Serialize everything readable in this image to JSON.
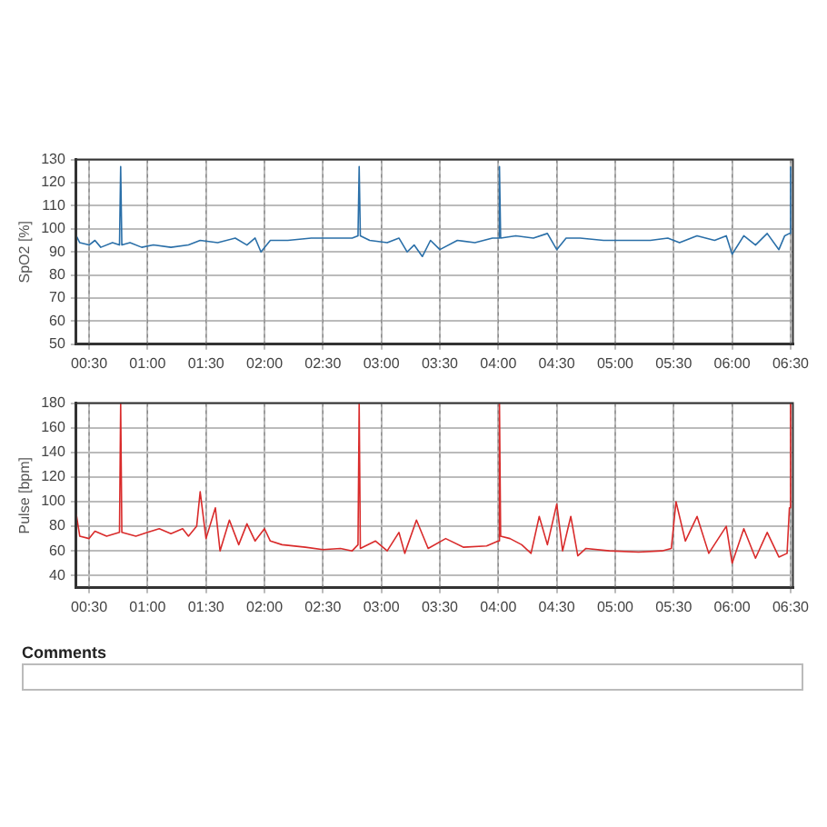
{
  "chart_data": [
    {
      "type": "line",
      "ylabel": "SpO2 [%]",
      "xlim": [
        0.39,
        6.52
      ],
      "ylim": [
        50,
        130
      ],
      "yticks": [
        50,
        60,
        70,
        80,
        90,
        100,
        110,
        120,
        130
      ],
      "xticks": [
        {
          "value": 0.5,
          "label": "00:30"
        },
        {
          "value": 1,
          "label": "01:00"
        },
        {
          "value": 1.5,
          "label": "01:30"
        },
        {
          "value": 2,
          "label": "02:00"
        },
        {
          "value": 2.5,
          "label": "02:30"
        },
        {
          "value": 3,
          "label": "03:00"
        },
        {
          "value": 3.5,
          "label": "03:30"
        },
        {
          "value": 4,
          "label": "04:00"
        },
        {
          "value": 4.5,
          "label": "04:30"
        },
        {
          "value": 5,
          "label": "05:00"
        },
        {
          "value": 5.5,
          "label": "05:30"
        },
        {
          "value": 6,
          "label": "06:00"
        },
        {
          "value": 6.5,
          "label": "06:30"
        }
      ],
      "grid": true,
      "marker": "none",
      "line_style": "solid",
      "series": [
        {
          "color": "#2a6fa8",
          "x": [
            0.39,
            0.42,
            0.5,
            0.55,
            0.6,
            0.7,
            0.76,
            0.77,
            0.78,
            0.85,
            0.95,
            1.05,
            1.2,
            1.35,
            1.45,
            1.6,
            1.75,
            1.85,
            1.92,
            1.97,
            2.05,
            2.2,
            2.4,
            2.6,
            2.75,
            2.8,
            2.81,
            2.82,
            2.9,
            3.05,
            3.15,
            3.22,
            3.28,
            3.35,
            3.42,
            3.5,
            3.65,
            3.8,
            3.95,
            4.0,
            4.01,
            4.02,
            4.15,
            4.3,
            4.42,
            4.5,
            4.58,
            4.7,
            4.9,
            5.1,
            5.3,
            5.45,
            5.55,
            5.7,
            5.85,
            5.95,
            6.0,
            6.1,
            6.2,
            6.3,
            6.4,
            6.45,
            6.49,
            6.5
          ],
          "values": [
            97,
            94,
            93,
            95,
            92,
            94,
            93,
            127,
            93,
            94,
            92,
            93,
            92,
            93,
            95,
            94,
            96,
            93,
            96,
            90,
            95,
            95,
            96,
            96,
            96,
            97,
            127,
            97,
            95,
            94,
            96,
            90,
            93,
            88,
            95,
            91,
            95,
            94,
            96,
            96,
            127,
            96,
            97,
            96,
            98,
            91,
            96,
            96,
            95,
            95,
            95,
            96,
            94,
            97,
            95,
            97,
            89,
            97,
            93,
            98,
            91,
            97,
            98,
            127
          ]
        }
      ]
    },
    {
      "type": "line",
      "ylabel": "Pulse [bpm]",
      "xlim": [
        0.39,
        6.52
      ],
      "ylim": [
        30,
        180
      ],
      "yticks": [
        40,
        60,
        80,
        100,
        120,
        140,
        160,
        180
      ],
      "xticks": [
        {
          "value": 0.5,
          "label": "00:30"
        },
        {
          "value": 1,
          "label": "01:00"
        },
        {
          "value": 1.5,
          "label": "01:30"
        },
        {
          "value": 2,
          "label": "02:00"
        },
        {
          "value": 2.5,
          "label": "02:30"
        },
        {
          "value": 3,
          "label": "03:00"
        },
        {
          "value": 3.5,
          "label": "03:30"
        },
        {
          "value": 4,
          "label": "04:00"
        },
        {
          "value": 4.5,
          "label": "04:30"
        },
        {
          "value": 5,
          "label": "05:00"
        },
        {
          "value": 5.5,
          "label": "05:30"
        },
        {
          "value": 6,
          "label": "06:00"
        },
        {
          "value": 6.5,
          "label": "06:30"
        }
      ],
      "grid": true,
      "marker": "none",
      "line_style": "solid",
      "series": [
        {
          "color": "#d92b2b",
          "x": [
            0.39,
            0.42,
            0.5,
            0.55,
            0.65,
            0.76,
            0.77,
            0.78,
            0.9,
            1.0,
            1.1,
            1.2,
            1.3,
            1.35,
            1.42,
            1.45,
            1.5,
            1.58,
            1.62,
            1.7,
            1.78,
            1.85,
            1.92,
            2.0,
            2.05,
            2.15,
            2.35,
            2.5,
            2.65,
            2.75,
            2.8,
            2.81,
            2.82,
            2.95,
            3.05,
            3.15,
            3.2,
            3.3,
            3.4,
            3.55,
            3.7,
            3.9,
            4.0,
            4.01,
            4.02,
            4.1,
            4.2,
            4.28,
            4.35,
            4.42,
            4.5,
            4.55,
            4.62,
            4.68,
            4.75,
            4.95,
            5.2,
            5.4,
            5.48,
            5.52,
            5.6,
            5.7,
            5.8,
            5.95,
            6.0,
            6.1,
            6.2,
            6.3,
            6.4,
            6.47,
            6.49,
            6.5
          ],
          "values": [
            90,
            72,
            70,
            76,
            72,
            75,
            180,
            75,
            72,
            75,
            78,
            74,
            78,
            72,
            80,
            108,
            70,
            95,
            60,
            85,
            65,
            82,
            68,
            78,
            68,
            65,
            63,
            61,
            62,
            60,
            65,
            180,
            62,
            68,
            60,
            75,
            58,
            85,
            62,
            70,
            63,
            64,
            68,
            180,
            72,
            70,
            65,
            58,
            88,
            65,
            98,
            60,
            88,
            56,
            62,
            60,
            59,
            60,
            62,
            100,
            68,
            88,
            58,
            80,
            50,
            78,
            54,
            75,
            55,
            58,
            95,
            180
          ]
        }
      ]
    },
    {
      "type": "other",
      "title": "Comments"
    }
  ]
}
